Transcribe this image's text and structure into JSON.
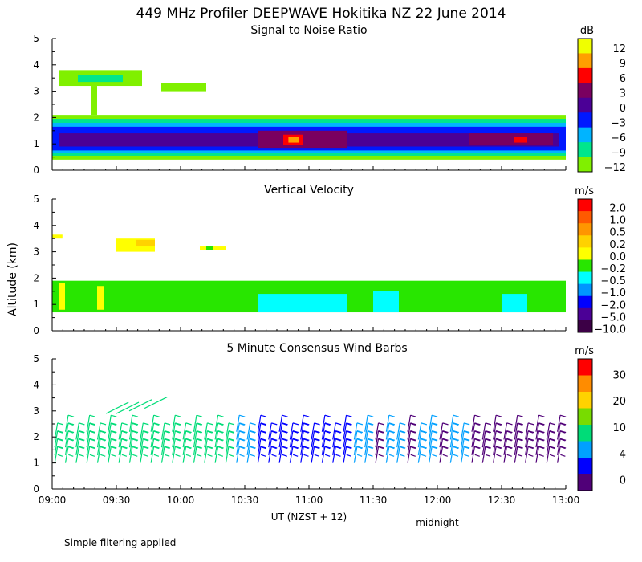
{
  "figure": {
    "main_title": "449 MHz Profiler DEEPWAVE Hokitika NZ 22 June 2014",
    "y_axis_label": "Altitude (km)",
    "x_axis_label": "UT  (NZST + 12)",
    "midnight_label": "midnight",
    "footnote": "Simple filtering applied"
  },
  "chart_data": [
    {
      "type": "heatmap",
      "title": "Signal to Noise Ratio",
      "ylabel": "Altitude (km)",
      "xlabel": "UT  (NZST + 12)",
      "ylim": [
        0,
        5
      ],
      "yticks": [
        "0",
        "1",
        "2",
        "3",
        "4",
        "5"
      ],
      "x_range_hours": [
        9.0,
        13.0
      ],
      "xticks": [
        "09:00",
        "09:30",
        "10:00",
        "10:30",
        "11:00",
        "11:30",
        "12:00",
        "12:30",
        "13:00"
      ],
      "colorbar": {
        "unit": "dB",
        "labels": [
          "12",
          "9",
          "6",
          "3",
          "0",
          "−3",
          "−6",
          "−9",
          "−12"
        ],
        "colors": [
          "#f0ff00",
          "#ffa000",
          "#ff0000",
          "#7a0060",
          "#4b0096",
          "#0018ff",
          "#00b4ff",
          "#00e68c",
          "#80f000"
        ]
      },
      "regions": [
        {
          "from": 9.0,
          "to": 13.0,
          "bot": 0.4,
          "top": 2.1,
          "level": "−12"
        },
        {
          "from": 9.0,
          "to": 13.0,
          "bot": 0.55,
          "top": 1.95,
          "level": "−9"
        },
        {
          "from": 9.0,
          "to": 13.0,
          "bot": 0.65,
          "top": 1.8,
          "level": "−6"
        },
        {
          "from": 9.0,
          "to": 13.0,
          "bot": 0.75,
          "top": 1.65,
          "level": "−3"
        },
        {
          "from": 9.05,
          "to": 12.95,
          "bot": 0.9,
          "top": 1.4,
          "level": "0"
        },
        {
          "from": 10.6,
          "to": 11.3,
          "bot": 0.85,
          "top": 1.5,
          "level": "3"
        },
        {
          "from": 12.25,
          "to": 12.9,
          "bot": 0.95,
          "top": 1.4,
          "level": "3"
        },
        {
          "from": 10.8,
          "to": 10.95,
          "bot": 0.95,
          "top": 1.35,
          "level": "6"
        },
        {
          "from": 10.84,
          "to": 10.92,
          "bot": 1.05,
          "top": 1.25,
          "level": "9"
        },
        {
          "from": 12.6,
          "to": 12.7,
          "bot": 1.05,
          "top": 1.25,
          "level": "6"
        },
        {
          "from": 9.05,
          "to": 9.7,
          "bot": 3.2,
          "top": 3.8,
          "level": "−12"
        },
        {
          "from": 9.85,
          "to": 10.2,
          "bot": 3.0,
          "top": 3.3,
          "level": "−12"
        },
        {
          "from": 9.3,
          "to": 9.35,
          "bot": 2.1,
          "top": 3.2,
          "level": "−12"
        },
        {
          "from": 9.2,
          "to": 9.55,
          "bot": 3.35,
          "top": 3.6,
          "level": "−9"
        }
      ]
    },
    {
      "type": "heatmap",
      "title": "Vertical Velocity",
      "ylabel": "Altitude (km)",
      "xlabel": "UT  (NZST + 12)",
      "ylim": [
        0,
        5
      ],
      "yticks": [
        "0",
        "1",
        "2",
        "3",
        "4",
        "5"
      ],
      "x_range_hours": [
        9.0,
        13.0
      ],
      "xticks": [
        "09:00",
        "09:30",
        "10:00",
        "10:30",
        "11:00",
        "11:30",
        "12:00",
        "12:30",
        "13:00"
      ],
      "colorbar": {
        "unit": "m/s",
        "labels": [
          "2.0",
          "1.0",
          "0.5",
          "0.2",
          "0.0",
          "−0.2",
          "−0.5",
          "−1.0",
          "−2.0",
          "−5.0",
          "−10.0"
        ],
        "colors": [
          "#ff0000",
          "#ff5a00",
          "#ff9600",
          "#ffd200",
          "#ffff00",
          "#28e600",
          "#00ffff",
          "#0096ff",
          "#0000ff",
          "#4b0096",
          "#3c0046"
        ]
      },
      "regions": [
        {
          "from": 9.0,
          "to": 13.0,
          "bot": 0.7,
          "top": 1.9,
          "level": "−0.2"
        },
        {
          "from": 10.6,
          "to": 11.3,
          "bot": 0.7,
          "top": 1.4,
          "level": "−0.5"
        },
        {
          "from": 11.5,
          "to": 11.7,
          "bot": 0.7,
          "top": 1.5,
          "level": "−0.5"
        },
        {
          "from": 12.5,
          "to": 12.7,
          "bot": 0.7,
          "top": 1.4,
          "level": "−0.5"
        },
        {
          "from": 9.05,
          "to": 9.1,
          "bot": 0.8,
          "top": 1.8,
          "level": "0.0"
        },
        {
          "from": 9.35,
          "to": 9.4,
          "bot": 0.8,
          "top": 1.7,
          "level": "0.0"
        },
        {
          "from": 9.0,
          "to": 9.08,
          "bot": 3.5,
          "top": 3.65,
          "level": "0.0"
        },
        {
          "from": 9.5,
          "to": 9.8,
          "bot": 3.0,
          "top": 3.5,
          "level": "0.0"
        },
        {
          "from": 9.65,
          "to": 9.8,
          "bot": 3.2,
          "top": 3.45,
          "level": "0.2"
        },
        {
          "from": 10.15,
          "to": 10.35,
          "bot": 3.05,
          "top": 3.2,
          "level": "0.0"
        },
        {
          "from": 10.2,
          "to": 10.25,
          "bot": 3.05,
          "top": 3.2,
          "level": "−0.2"
        }
      ]
    },
    {
      "type": "scatter",
      "title": "5 Minute Consensus Wind Barbs",
      "ylabel": "Altitude (km)",
      "xlabel": "UT  (NZST + 12)",
      "ylim": [
        0,
        5
      ],
      "yticks": [
        "0",
        "1",
        "2",
        "3",
        "4",
        "5"
      ],
      "x_range_hours": [
        9.0,
        13.0
      ],
      "xticks": [
        "09:00",
        "09:30",
        "10:00",
        "10:30",
        "11:00",
        "11:30",
        "12:00",
        "12:30",
        "13:00"
      ],
      "colorbar": {
        "unit": "m/s",
        "labels": [
          "30",
          "20",
          "10",
          "4",
          "0"
        ],
        "colors": [
          "#ff0000",
          "#ff8c00",
          "#ffd200",
          "#78dc00",
          "#00dc78",
          "#00a0ff",
          "#0000ff",
          "#500078"
        ]
      },
      "barbs": {
        "time_start": 9.0,
        "time_end": 12.95,
        "time_step": 0.0833,
        "altitudes_km": [
          1.0,
          1.3,
          1.6,
          1.9,
          2.2
        ],
        "upper_level_barbs": [
          {
            "t": 9.42,
            "alt": 2.9,
            "speed": 10
          },
          {
            "t": 9.5,
            "alt": 2.9,
            "speed": 12
          },
          {
            "t": 9.6,
            "alt": 3.0,
            "speed": 12
          },
          {
            "t": 9.72,
            "alt": 3.1,
            "speed": 14
          }
        ]
      }
    }
  ]
}
